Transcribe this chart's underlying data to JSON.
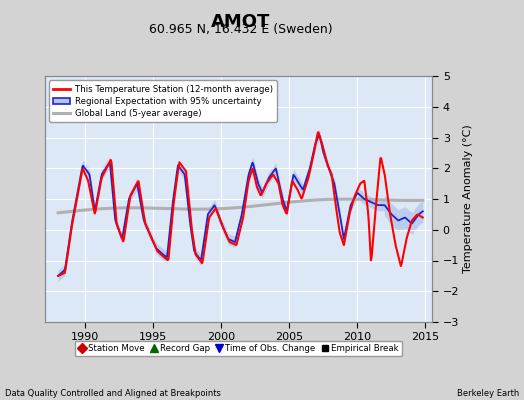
{
  "title": "AMOT",
  "subtitle": "60.965 N, 16.432 E (Sweden)",
  "ylabel": "Temperature Anomaly (°C)",
  "xlabel_left": "Data Quality Controlled and Aligned at Breakpoints",
  "xlabel_right": "Berkeley Earth",
  "xlim": [
    1987.0,
    2015.5
  ],
  "ylim": [
    -3,
    5
  ],
  "yticks": [
    -3,
    -2,
    -1,
    0,
    1,
    2,
    3,
    4,
    5
  ],
  "xticks": [
    1990,
    1995,
    2000,
    2005,
    2010,
    2015
  ],
  "bg_color": "#d3d3d3",
  "plot_bg_color": "#dce8f5",
  "grid_color": "#ffffff",
  "red_line_color": "#ff0000",
  "blue_line_color": "#2222cc",
  "blue_fill_color": "#b0c4ee",
  "gray_line_color": "#b0b0b0",
  "title_fontsize": 13,
  "subtitle_fontsize": 9,
  "legend_entries": [
    "This Temperature Station (12-month average)",
    "Regional Expectation with 95% uncertainty",
    "Global Land (5-year average)"
  ],
  "bottom_legend": [
    {
      "marker": "D",
      "color": "#cc0000",
      "label": "Station Move"
    },
    {
      "marker": "^",
      "color": "#006600",
      "label": "Record Gap"
    },
    {
      "marker": "v",
      "color": "#0000cc",
      "label": "Time of Obs. Change"
    },
    {
      "marker": "s",
      "color": "#000000",
      "label": "Empirical Break"
    }
  ]
}
